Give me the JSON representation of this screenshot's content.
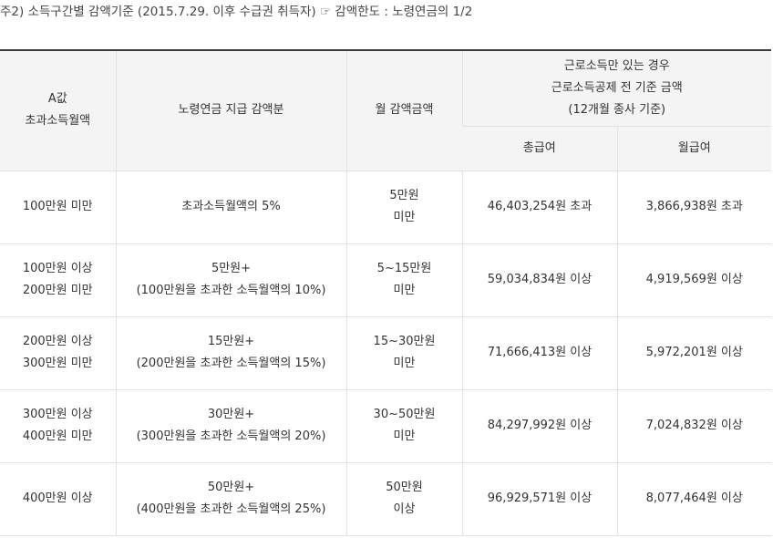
{
  "note": "주2) 소득구간별 감액기준 (2015.7.29. 이후 수급권 취득자) ☞ 감액한도 : 노령연금의 1/2",
  "header": {
    "col1": [
      "A값",
      "초과소득월액"
    ],
    "col2": "노령연금 지급 감액분",
    "col3": "월 감액금액",
    "group": [
      "근로소득만 있는 경우",
      "근로소득공제 전 기준 금액",
      "(12개월 종사 기준)"
    ],
    "sub1": "총급여",
    "sub2": "월급여"
  },
  "rows": [
    {
      "range": [
        "100만원 미만"
      ],
      "deduct": [
        "초과소득월액의 5%"
      ],
      "monthly": [
        "5만원",
        "미만"
      ],
      "total": "46,403,254원 초과",
      "month_pay": "3,866,938원 초과"
    },
    {
      "range": [
        "100만원 이상",
        "200만원 미만"
      ],
      "deduct": [
        "5만원+",
        "(100만원을 초과한 소득월액의 10%)"
      ],
      "monthly": [
        "5~15만원",
        "미만"
      ],
      "total": "59,034,834원 이상",
      "month_pay": "4,919,569원 이상"
    },
    {
      "range": [
        "200만원 이상",
        "300만원 미만"
      ],
      "deduct": [
        "15만원+",
        "(200만원을 초과한 소득월액의 15%)"
      ],
      "monthly": [
        "15~30만원",
        "미만"
      ],
      "total": "71,666,413원 이상",
      "month_pay": "5,972,201원 이상"
    },
    {
      "range": [
        "300만원 이상",
        "400만원 미만"
      ],
      "deduct": [
        "30만원+",
        "(300만원을 초과한 소득월액의 20%)"
      ],
      "monthly": [
        "30~50만원",
        "미만"
      ],
      "total": "84,297,992원 이상",
      "month_pay": "7,024,832원 이상"
    },
    {
      "range": [
        "400만원 이상"
      ],
      "deduct": [
        "50만원+",
        "(400만원을 초과한 소득월액의 25%)"
      ],
      "monthly": [
        "50만원",
        "이상"
      ],
      "total": "96,929,571원 이상",
      "month_pay": "8,077,464원 이상"
    }
  ]
}
